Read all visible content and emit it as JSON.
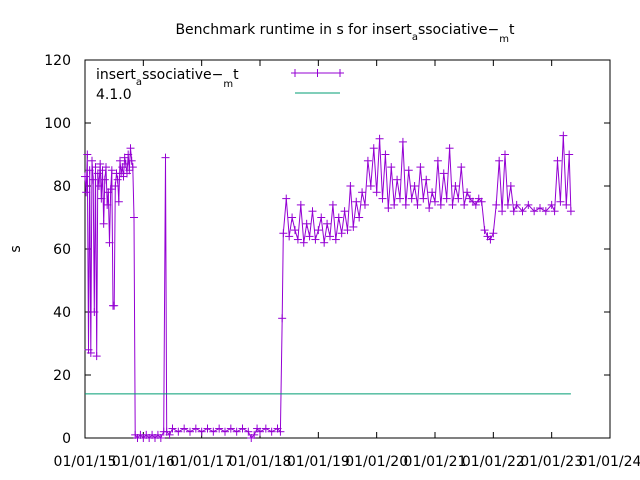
{
  "chart_data": {
    "type": "line",
    "title": "Benchmark runtime in s for insert",
    "title_sub": "a",
    "title_mid": "ssociative−",
    "title_sub2": "m",
    "title_end": "t",
    "ylabel": "s",
    "xlabel": "",
    "ylim": [
      0,
      120
    ],
    "yticks": [
      0,
      20,
      40,
      60,
      80,
      100,
      120
    ],
    "xticks": [
      "01/01/15",
      "01/01/16",
      "01/01/17",
      "01/01/18",
      "01/01/19",
      "01/01/20",
      "01/01/21",
      "01/01/22",
      "01/01/23",
      "01/01/24"
    ],
    "xlim_years": [
      2015,
      2024
    ],
    "legend_position": "top-left",
    "grid": false,
    "series": [
      {
        "name": "insert",
        "name_sub": "a",
        "name_mid": "ssociative−",
        "name_sub2": "m",
        "name_end": "t",
        "color": "#9400d3",
        "marker": "+",
        "points": [
          [
            2015.0,
            83
          ],
          [
            2015.02,
            78
          ],
          [
            2015.04,
            90
          ],
          [
            2015.06,
            28
          ],
          [
            2015.08,
            85
          ],
          [
            2015.1,
            27
          ],
          [
            2015.12,
            88
          ],
          [
            2015.14,
            82
          ],
          [
            2015.16,
            40
          ],
          [
            2015.18,
            86
          ],
          [
            2015.2,
            26
          ],
          [
            2015.22,
            84
          ],
          [
            2015.24,
            80
          ],
          [
            2015.26,
            87
          ],
          [
            2015.28,
            76
          ],
          [
            2015.3,
            85
          ],
          [
            2015.32,
            68
          ],
          [
            2015.34,
            82
          ],
          [
            2015.36,
            86
          ],
          [
            2015.38,
            74
          ],
          [
            2015.4,
            78
          ],
          [
            2015.42,
            62
          ],
          [
            2015.44,
            79
          ],
          [
            2015.46,
            85
          ],
          [
            2015.48,
            42
          ],
          [
            2015.5,
            42
          ],
          [
            2015.52,
            80
          ],
          [
            2015.54,
            84
          ],
          [
            2015.56,
            82
          ],
          [
            2015.58,
            75
          ],
          [
            2015.6,
            88
          ],
          [
            2015.62,
            84
          ],
          [
            2015.64,
            86
          ],
          [
            2015.66,
            83
          ],
          [
            2015.68,
            89
          ],
          [
            2015.7,
            87
          ],
          [
            2015.72,
            84
          ],
          [
            2015.74,
            90
          ],
          [
            2015.76,
            85
          ],
          [
            2015.78,
            92
          ],
          [
            2015.8,
            88
          ],
          [
            2015.82,
            86
          ],
          [
            2015.84,
            70
          ],
          [
            2015.86,
            1
          ],
          [
            2015.9,
            0
          ],
          [
            2015.95,
            1
          ],
          [
            2016.0,
            0
          ],
          [
            2016.05,
            1
          ],
          [
            2016.1,
            0
          ],
          [
            2016.15,
            1
          ],
          [
            2016.2,
            0
          ],
          [
            2016.25,
            1
          ],
          [
            2016.3,
            0
          ],
          [
            2016.35,
            2
          ],
          [
            2016.38,
            89
          ],
          [
            2016.4,
            2
          ],
          [
            2016.45,
            1
          ],
          [
            2016.5,
            3
          ],
          [
            2016.6,
            2
          ],
          [
            2016.7,
            3
          ],
          [
            2016.8,
            2
          ],
          [
            2016.9,
            3
          ],
          [
            2017.0,
            2
          ],
          [
            2017.1,
            3
          ],
          [
            2017.2,
            2
          ],
          [
            2017.3,
            3
          ],
          [
            2017.4,
            2
          ],
          [
            2017.5,
            3
          ],
          [
            2017.6,
            2
          ],
          [
            2017.7,
            3
          ],
          [
            2017.8,
            2
          ],
          [
            2017.85,
            0
          ],
          [
            2017.9,
            1
          ],
          [
            2017.95,
            3
          ],
          [
            2018.0,
            2
          ],
          [
            2018.1,
            3
          ],
          [
            2018.2,
            2
          ],
          [
            2018.3,
            3
          ],
          [
            2018.35,
            2
          ],
          [
            2018.38,
            38
          ],
          [
            2018.4,
            65
          ],
          [
            2018.45,
            76
          ],
          [
            2018.5,
            64
          ],
          [
            2018.55,
            70
          ],
          [
            2018.6,
            66
          ],
          [
            2018.65,
            63
          ],
          [
            2018.7,
            74
          ],
          [
            2018.75,
            62
          ],
          [
            2018.8,
            68
          ],
          [
            2018.85,
            64
          ],
          [
            2018.9,
            72
          ],
          [
            2018.95,
            63
          ],
          [
            2019.0,
            66
          ],
          [
            2019.05,
            70
          ],
          [
            2019.1,
            62
          ],
          [
            2019.15,
            68
          ],
          [
            2019.2,
            64
          ],
          [
            2019.25,
            74
          ],
          [
            2019.3,
            63
          ],
          [
            2019.35,
            70
          ],
          [
            2019.4,
            65
          ],
          [
            2019.45,
            72
          ],
          [
            2019.5,
            66
          ],
          [
            2019.55,
            80
          ],
          [
            2019.6,
            67
          ],
          [
            2019.65,
            75
          ],
          [
            2019.7,
            70
          ],
          [
            2019.75,
            78
          ],
          [
            2019.8,
            74
          ],
          [
            2019.85,
            88
          ],
          [
            2019.9,
            80
          ],
          [
            2019.95,
            92
          ],
          [
            2020.0,
            78
          ],
          [
            2020.05,
            95
          ],
          [
            2020.1,
            76
          ],
          [
            2020.15,
            90
          ],
          [
            2020.2,
            73
          ],
          [
            2020.25,
            86
          ],
          [
            2020.3,
            74
          ],
          [
            2020.35,
            82
          ],
          [
            2020.4,
            76
          ],
          [
            2020.45,
            94
          ],
          [
            2020.5,
            74
          ],
          [
            2020.55,
            85
          ],
          [
            2020.6,
            76
          ],
          [
            2020.65,
            80
          ],
          [
            2020.7,
            74
          ],
          [
            2020.75,
            86
          ],
          [
            2020.8,
            76
          ],
          [
            2020.85,
            82
          ],
          [
            2020.9,
            73
          ],
          [
            2020.95,
            78
          ],
          [
            2021.0,
            75
          ],
          [
            2021.05,
            88
          ],
          [
            2021.1,
            74
          ],
          [
            2021.15,
            84
          ],
          [
            2021.2,
            76
          ],
          [
            2021.25,
            92
          ],
          [
            2021.3,
            74
          ],
          [
            2021.35,
            80
          ],
          [
            2021.4,
            76
          ],
          [
            2021.45,
            86
          ],
          [
            2021.5,
            74
          ],
          [
            2021.55,
            78
          ],
          [
            2021.6,
            76
          ],
          [
            2021.65,
            75
          ],
          [
            2021.7,
            74
          ],
          [
            2021.75,
            76
          ],
          [
            2021.8,
            75
          ],
          [
            2021.85,
            66
          ],
          [
            2021.9,
            64
          ],
          [
            2021.95,
            63
          ],
          [
            2022.0,
            65
          ],
          [
            2022.05,
            74
          ],
          [
            2022.1,
            88
          ],
          [
            2022.15,
            72
          ],
          [
            2022.2,
            90
          ],
          [
            2022.25,
            74
          ],
          [
            2022.3,
            80
          ],
          [
            2022.35,
            72
          ],
          [
            2022.4,
            74
          ],
          [
            2022.5,
            72
          ],
          [
            2022.6,
            74
          ],
          [
            2022.7,
            72
          ],
          [
            2022.8,
            73
          ],
          [
            2022.9,
            72
          ],
          [
            2023.0,
            74
          ],
          [
            2023.05,
            72
          ],
          [
            2023.1,
            88
          ],
          [
            2023.15,
            75
          ],
          [
            2023.2,
            96
          ],
          [
            2023.25,
            74
          ],
          [
            2023.3,
            90
          ],
          [
            2023.33,
            72
          ]
        ]
      },
      {
        "name": "4.1.0",
        "color": "#009e73",
        "marker": "none",
        "points": [
          [
            2015.0,
            14
          ],
          [
            2023.33,
            14
          ]
        ]
      }
    ]
  }
}
